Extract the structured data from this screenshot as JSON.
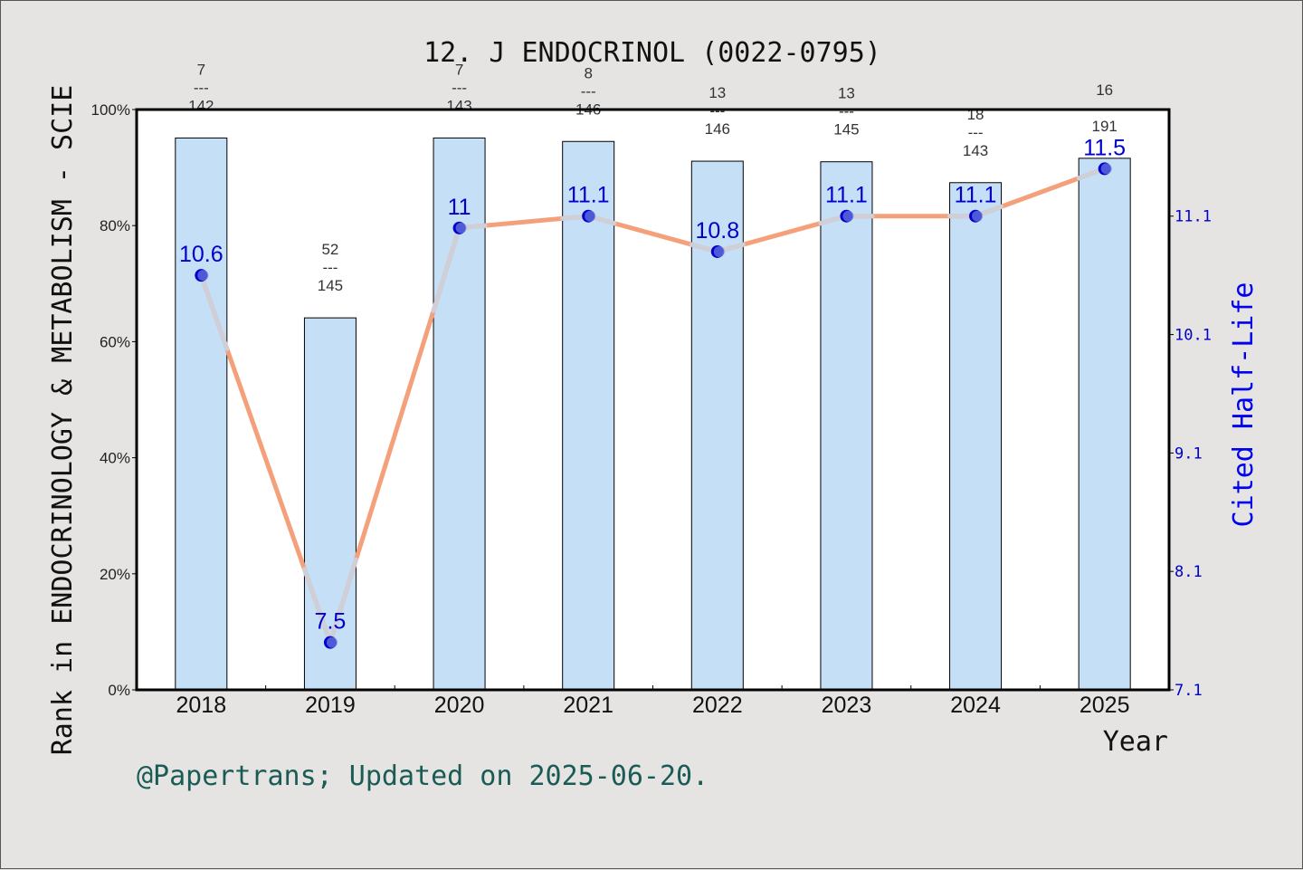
{
  "chart_data": {
    "type": "bar+line",
    "title": "12. J ENDOCRINOL (0022-0795)",
    "xlabel": "Year",
    "ylabel_left": "Rank in ENDOCRINOLOGY & METABOLISM - SCIE",
    "ylabel_right": "Cited Half-Life",
    "categories": [
      "2018",
      "2019",
      "2020",
      "2021",
      "2022",
      "2023",
      "2024",
      "2025"
    ],
    "left_axis": {
      "ticks": [
        "0%",
        "20%",
        "40%",
        "60%",
        "80%",
        "100%"
      ],
      "ylim": [
        0,
        100
      ]
    },
    "right_axis": {
      "ticks": [
        "7.1",
        "8.1",
        "9.1",
        "10.1",
        "11.1"
      ],
      "ylim": [
        7.1,
        12.0
      ]
    },
    "bars": {
      "values_percent": [
        95.1,
        64.1,
        95.1,
        94.5,
        91.1,
        91.0,
        87.4,
        91.6
      ],
      "rank_labels": [
        {
          "rank": "7",
          "total": "142"
        },
        {
          "rank": "52",
          "total": "145"
        },
        {
          "rank": "7",
          "total": "143"
        },
        {
          "rank": "8",
          "total": "146"
        },
        {
          "rank": "13",
          "total": "146"
        },
        {
          "rank": "13",
          "total": "145"
        },
        {
          "rank": "18",
          "total": "143"
        },
        {
          "rank": "16",
          "total": "191"
        }
      ],
      "color": "#c5dff6"
    },
    "line": {
      "values": [
        10.6,
        7.5,
        11.0,
        11.1,
        10.8,
        11.1,
        11.1,
        11.5
      ],
      "labels": [
        "10.6",
        "7.5",
        "11",
        "11.1",
        "10.8",
        "11.1",
        "11.1",
        "11.5"
      ],
      "color": "#f4a07a",
      "marker_color": "#0000cc"
    },
    "grid": false,
    "legend": "none"
  },
  "footer": "@Papertrans; Updated on 2025-06-20."
}
